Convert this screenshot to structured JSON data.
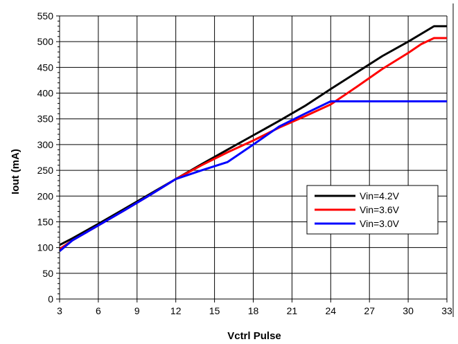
{
  "chart_data": {
    "type": "line",
    "xlabel": "Vctrl Pulse",
    "ylabel": "Iout (mA)",
    "xlim": [
      3,
      33
    ],
    "ylim": [
      0,
      550
    ],
    "x_ticks": [
      3,
      6,
      9,
      12,
      15,
      18,
      21,
      24,
      27,
      30,
      33
    ],
    "y_ticks": [
      0,
      50,
      100,
      150,
      200,
      250,
      300,
      350,
      400,
      450,
      500,
      550
    ],
    "grid": true,
    "legend_position": "bottom-right",
    "series": [
      {
        "name": "Vin=4.2V",
        "color": "#000000",
        "points": [
          [
            3,
            105
          ],
          [
            4,
            118
          ],
          [
            6,
            146
          ],
          [
            8,
            175
          ],
          [
            10,
            204
          ],
          [
            12,
            233
          ],
          [
            14,
            262
          ],
          [
            16,
            290
          ],
          [
            18,
            318
          ],
          [
            20,
            346
          ],
          [
            22,
            375
          ],
          [
            24,
            408
          ],
          [
            26,
            440
          ],
          [
            28,
            472
          ],
          [
            30,
            500
          ],
          [
            32,
            530
          ],
          [
            33,
            530
          ]
        ]
      },
      {
        "name": "Vin=3.6V",
        "color": "#ff0000",
        "points": [
          [
            3,
            97
          ],
          [
            4,
            114
          ],
          [
            6,
            143
          ],
          [
            8,
            172
          ],
          [
            10,
            202
          ],
          [
            12,
            233
          ],
          [
            14,
            260
          ],
          [
            16,
            285
          ],
          [
            18,
            308
          ],
          [
            20,
            333
          ],
          [
            22,
            355
          ],
          [
            24,
            378
          ],
          [
            26,
            412
          ],
          [
            28,
            447
          ],
          [
            30,
            478
          ],
          [
            31,
            495
          ],
          [
            32,
            507
          ],
          [
            33,
            507
          ]
        ]
      },
      {
        "name": "Vin=3.0V",
        "color": "#0000ff",
        "points": [
          [
            3,
            93
          ],
          [
            4,
            114
          ],
          [
            6,
            143
          ],
          [
            8,
            172
          ],
          [
            10,
            202
          ],
          [
            12,
            233
          ],
          [
            14,
            250
          ],
          [
            16,
            266
          ],
          [
            18,
            300
          ],
          [
            20,
            335
          ],
          [
            22,
            360
          ],
          [
            24,
            384
          ],
          [
            33,
            384
          ]
        ]
      }
    ]
  }
}
